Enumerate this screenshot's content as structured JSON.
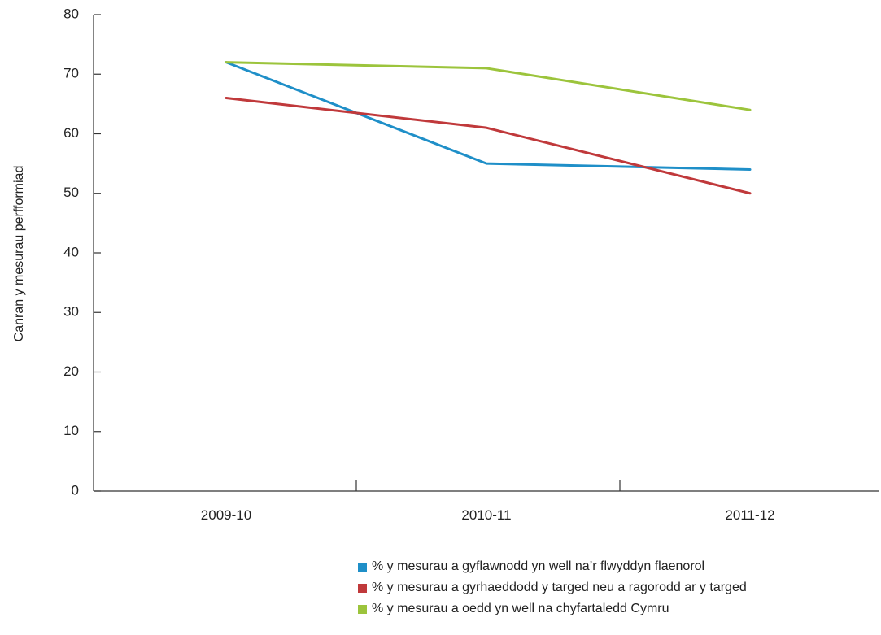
{
  "chart_data": {
    "type": "line",
    "title": "",
    "xlabel": "",
    "ylabel": "Canran y mesurau perfformiad",
    "categories": [
      "2009-10",
      "2010-11",
      "2011-12"
    ],
    "ylim": [
      0,
      80
    ],
    "yticks": [
      0,
      10,
      20,
      30,
      40,
      50,
      60,
      70,
      80
    ],
    "grid": false,
    "legend_position": "bottom-right",
    "series": [
      {
        "name": "% y mesurau a gyflawnodd yn well na’r flwyddyn flaenorol",
        "color": "#1f8fc8",
        "values": [
          72,
          55,
          54
        ]
      },
      {
        "name": "% y mesurau a gyrhaeddodd y targed neu a ragorodd ar y targed",
        "color": "#c0393b",
        "values": [
          66,
          61,
          50
        ]
      },
      {
        "name": "% y mesurau a oedd yn well na chyfartaledd Cymru",
        "color": "#9cc43c",
        "values": [
          72,
          71,
          64
        ]
      }
    ]
  }
}
